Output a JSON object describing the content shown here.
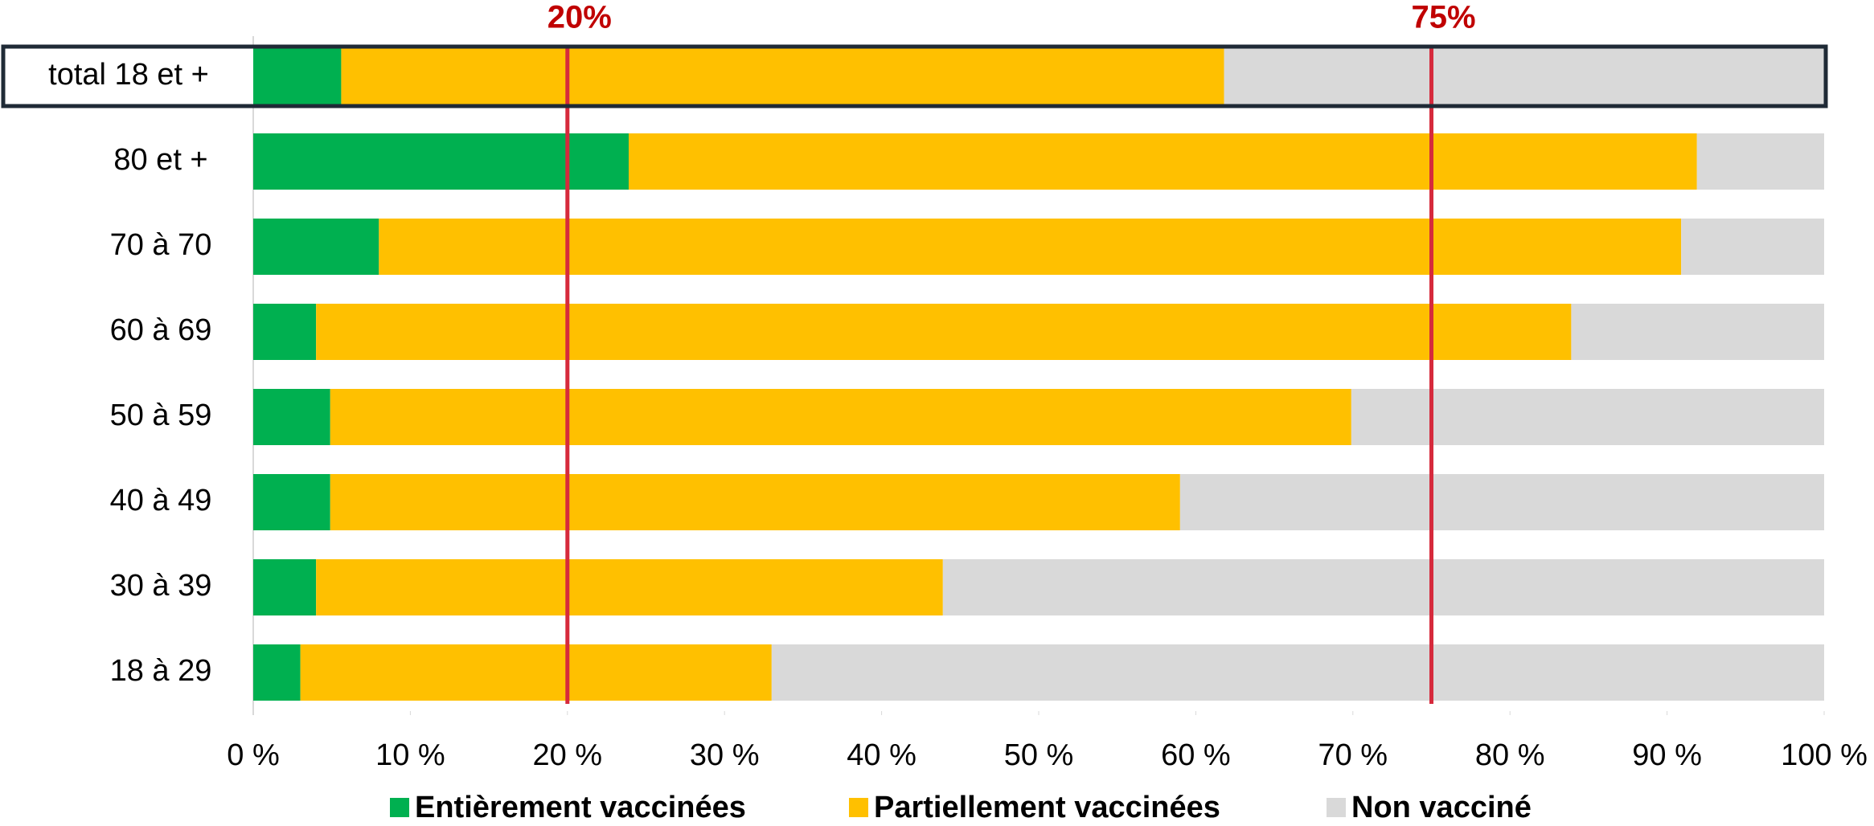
{
  "chart_data": {
    "type": "stacked-barh",
    "categories": [
      "total 18 et +",
      "80 et +",
      "70 à 70",
      "60 à 69",
      "50 à 59",
      "40 à 49",
      "30 à 39",
      "18 à 29"
    ],
    "series": [
      {
        "name": "Entièrement vaccinées",
        "color": "#00b050",
        "values": [
          5.6,
          23.9,
          8.0,
          4.0,
          4.9,
          4.9,
          4.0,
          3.0
        ]
      },
      {
        "name": "Partiellement vaccinées",
        "color": "#ffc000",
        "values": [
          56.2,
          68.0,
          82.9,
          79.9,
          65.0,
          54.1,
          39.9,
          30.0
        ]
      },
      {
        "name": "Non vacciné",
        "color": "#d9d9d9",
        "values": [
          38.2,
          8.1,
          9.1,
          16.1,
          30.1,
          41.0,
          56.1,
          67.0
        ]
      }
    ],
    "xlim": [
      0,
      100
    ],
    "xticks": [
      {
        "value": 0,
        "label": "0 %"
      },
      {
        "value": 10,
        "label": "10 %"
      },
      {
        "value": 20,
        "label": "20 %"
      },
      {
        "value": 30,
        "label": "30 %"
      },
      {
        "value": 40,
        "label": "40 %"
      },
      {
        "value": 50,
        "label": "50 %"
      },
      {
        "value": 60,
        "label": "60 %"
      },
      {
        "value": 70,
        "label": "70 %"
      },
      {
        "value": 80,
        "label": "80 %"
      },
      {
        "value": 90,
        "label": "90 %"
      },
      {
        "value": 100,
        "label": "100 %"
      }
    ],
    "reference_lines": [
      {
        "value": 20,
        "label": "20%",
        "color": "#d62a3c"
      },
      {
        "value": 75,
        "label": "75%",
        "color": "#d62a3c"
      }
    ],
    "legend": "bottom"
  }
}
